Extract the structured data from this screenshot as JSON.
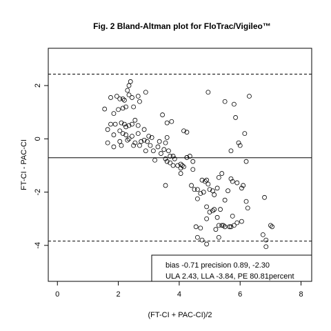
{
  "chart_data": {
    "type": "scatter",
    "title": "Fig. 2 Bland-Altman plot for FloTrac/Vigileo™",
    "xlabel": "(FT-CI + PAC-CI)/2",
    "ylabel": "FT-CI - PAC-CI",
    "xlim": [
      -0.3,
      8.35
    ],
    "ylim": [
      -5.35,
      3.4
    ],
    "x_ticks": [
      0,
      2,
      4,
      6,
      8
    ],
    "y_ticks": [
      -4,
      -2,
      0,
      2
    ],
    "grid": false,
    "reference_lines": [
      {
        "y": 2.43,
        "style": "dashed"
      },
      {
        "y": -0.71,
        "style": "solid"
      },
      {
        "y": -3.84,
        "style": "dashed"
      }
    ],
    "legend": {
      "placement": "bottom-right",
      "lines": [
        "bias -0.71  precision 0.89, -2.30",
        "ULA 2.43, LLA -3.84, PE 80.81percent"
      ]
    },
    "series": [
      {
        "marker": "open-circle",
        "points": [
          [
            1.55,
            1.12
          ],
          [
            1.75,
            1.55
          ],
          [
            1.95,
            1.6
          ],
          [
            2.05,
            1.5
          ],
          [
            2.15,
            1.5
          ],
          [
            2.3,
            1.82
          ],
          [
            2.35,
            2.0
          ],
          [
            2.4,
            2.15
          ],
          [
            2.2,
            1.45
          ],
          [
            2.35,
            1.65
          ],
          [
            2.45,
            1.55
          ],
          [
            2.5,
            1.2
          ],
          [
            2.65,
            1.6
          ],
          [
            2.7,
            1.4
          ],
          [
            2.9,
            1.75
          ],
          [
            2.15,
            1.15
          ],
          [
            2.25,
            1.2
          ],
          [
            2.0,
            1.1
          ],
          [
            1.85,
            0.95
          ],
          [
            1.75,
            0.55
          ],
          [
            1.9,
            0.55
          ],
          [
            2.05,
            0.3
          ],
          [
            2.1,
            0.6
          ],
          [
            2.2,
            0.55
          ],
          [
            2.25,
            0.45
          ],
          [
            2.35,
            0.5
          ],
          [
            2.45,
            0.55
          ],
          [
            2.55,
            0.7
          ],
          [
            2.65,
            0.5
          ],
          [
            2.85,
            0.35
          ],
          [
            1.65,
            0.35
          ],
          [
            1.85,
            0.15
          ],
          [
            2.05,
            -0.1
          ],
          [
            2.15,
            0.2
          ],
          [
            2.25,
            0.15
          ],
          [
            2.35,
            0.0
          ],
          [
            2.45,
            0.1
          ],
          [
            2.55,
            -0.15
          ],
          [
            2.65,
            0.2
          ],
          [
            2.75,
            -0.1
          ],
          [
            1.65,
            -0.15
          ],
          [
            1.85,
            -0.3
          ],
          [
            2.1,
            -0.25
          ],
          [
            2.3,
            -0.05
          ],
          [
            2.5,
            -0.25
          ],
          [
            2.7,
            -0.25
          ],
          [
            2.85,
            -0.05
          ],
          [
            2.95,
            -0.1
          ],
          [
            3.05,
            -0.25
          ],
          [
            3.15,
            -0.45
          ],
          [
            2.9,
            -0.45
          ],
          [
            3.0,
            0.1
          ],
          [
            3.1,
            0.05
          ],
          [
            3.3,
            -0.3
          ],
          [
            3.4,
            -0.55
          ],
          [
            3.5,
            -0.4
          ],
          [
            3.55,
            -0.15
          ],
          [
            3.65,
            -0.45
          ],
          [
            3.7,
            -0.65
          ],
          [
            3.8,
            -0.65
          ],
          [
            3.2,
            -0.8
          ],
          [
            3.35,
            -0.1
          ],
          [
            3.45,
            0.9
          ],
          [
            3.6,
            0.6
          ],
          [
            3.75,
            0.65
          ],
          [
            3.55,
            -0.75
          ],
          [
            3.6,
            -0.85
          ],
          [
            3.7,
            -0.9
          ],
          [
            3.85,
            -0.75
          ],
          [
            3.95,
            -1.0
          ],
          [
            4.05,
            -1.1
          ],
          [
            4.15,
            -1.05
          ],
          [
            4.25,
            -0.7
          ],
          [
            4.35,
            -0.65
          ],
          [
            4.45,
            -0.85
          ],
          [
            3.6,
            0.05
          ],
          [
            4.15,
            0.3
          ],
          [
            4.25,
            0.25
          ],
          [
            4.05,
            -0.95
          ],
          [
            4.25,
            -0.7
          ],
          [
            3.55,
            -1.75
          ],
          [
            3.8,
            -1.0
          ],
          [
            4.1,
            -1.0
          ],
          [
            4.4,
            -1.75
          ],
          [
            4.5,
            -1.9
          ],
          [
            4.6,
            -1.9
          ],
          [
            4.7,
            -2.05
          ],
          [
            4.75,
            -1.55
          ],
          [
            4.85,
            -1.6
          ],
          [
            4.9,
            -1.55
          ],
          [
            4.95,
            -1.7
          ],
          [
            5.0,
            -1.9
          ],
          [
            5.1,
            -1.95
          ],
          [
            5.15,
            -2.1
          ],
          [
            5.25,
            -1.85
          ],
          [
            5.3,
            -1.45
          ],
          [
            5.4,
            -1.3
          ],
          [
            5.5,
            -2.3
          ],
          [
            5.6,
            -1.95
          ],
          [
            5.7,
            -1.5
          ],
          [
            4.6,
            -2.25
          ],
          [
            4.8,
            -2.0
          ],
          [
            4.9,
            -2.55
          ],
          [
            5.0,
            -2.75
          ],
          [
            5.15,
            -2.65
          ],
          [
            5.25,
            -2.95
          ],
          [
            5.35,
            -2.65
          ],
          [
            5.45,
            -3.25
          ],
          [
            5.5,
            -3.3
          ],
          [
            5.65,
            -3.3
          ],
          [
            4.55,
            -3.3
          ],
          [
            4.7,
            -3.35
          ],
          [
            4.9,
            -3.0
          ],
          [
            5.1,
            -2.7
          ],
          [
            5.2,
            -3.4
          ],
          [
            5.3,
            -3.25
          ],
          [
            5.4,
            -3.25
          ],
          [
            5.7,
            -3.3
          ],
          [
            5.8,
            -3.25
          ],
          [
            5.9,
            -3.15
          ],
          [
            4.6,
            -3.7
          ],
          [
            4.75,
            -3.8
          ],
          [
            4.9,
            -3.95
          ],
          [
            5.3,
            -3.7
          ],
          [
            6.05,
            -3.1
          ],
          [
            4.95,
            1.75
          ],
          [
            5.5,
            1.4
          ],
          [
            5.8,
            1.3
          ],
          [
            5.95,
            -0.15
          ],
          [
            6.0,
            -0.25
          ],
          [
            6.3,
            1.6
          ],
          [
            5.85,
            0.8
          ],
          [
            6.15,
            0.2
          ],
          [
            6.2,
            -0.85
          ],
          [
            5.7,
            -0.45
          ],
          [
            5.75,
            -1.6
          ],
          [
            5.9,
            -1.65
          ],
          [
            6.1,
            -1.75
          ],
          [
            6.2,
            -2.35
          ],
          [
            6.25,
            -2.6
          ],
          [
            5.75,
            -2.9
          ],
          [
            6.05,
            -1.85
          ],
          [
            6.8,
            -2.2
          ],
          [
            6.75,
            -3.6
          ],
          [
            6.85,
            -3.8
          ],
          [
            6.85,
            -4.05
          ],
          [
            7.05,
            -3.3
          ],
          [
            7.0,
            -3.25
          ],
          [
            4.05,
            -1.3
          ],
          [
            4.45,
            -1.15
          ]
        ]
      }
    ]
  }
}
